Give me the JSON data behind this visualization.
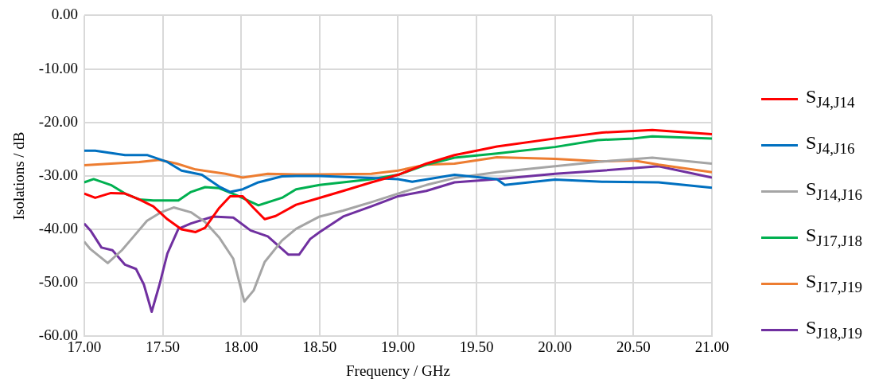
{
  "chart_data": {
    "type": "line",
    "xlabel": "Frequency / GHz",
    "ylabel": "Isolations / dB",
    "xlim": [
      17,
      21
    ],
    "ylim": [
      -60,
      0
    ],
    "xticks": [
      {
        "value": 17,
        "label": "17.00"
      },
      {
        "value": 17.5,
        "label": "17.50"
      },
      {
        "value": 18,
        "label": "18.00"
      },
      {
        "value": 18.5,
        "label": "18.50"
      },
      {
        "value": 19,
        "label": "19.00"
      },
      {
        "value": 19.5,
        "label": "19.50"
      },
      {
        "value": 20,
        "label": "20.00"
      },
      {
        "value": 20.5,
        "label": "20.50"
      },
      {
        "value": 21,
        "label": "21.00"
      }
    ],
    "yticks": [
      {
        "value": 0,
        "label": "0.00"
      },
      {
        "value": -10,
        "label": "-10.00"
      },
      {
        "value": -20,
        "label": "-20.00"
      },
      {
        "value": -30,
        "label": "-30.00"
      },
      {
        "value": -40,
        "label": "-40.00"
      },
      {
        "value": -50,
        "label": "-50.00"
      },
      {
        "value": -60,
        "label": "-60.00"
      }
    ],
    "grid": true,
    "legend": "right",
    "series": [
      {
        "name": "S$_{J4,J14}$",
        "color": "#ff0000",
        "x": [
          17.0,
          17.07,
          17.17,
          17.26,
          17.35,
          17.44,
          17.53,
          17.62,
          17.71,
          17.77,
          17.86,
          17.93,
          18.01,
          18.08,
          18.15,
          18.22,
          18.35,
          18.5,
          18.65,
          18.83,
          19.0,
          19.18,
          19.36,
          19.5,
          19.63,
          20.0,
          20.3,
          20.62,
          21.0
        ],
        "values": [
          -33.3,
          -34.1,
          -33.2,
          -33.3,
          -34.4,
          -35.7,
          -38.1,
          -40,
          -40.5,
          -39.7,
          -36,
          -33.8,
          -33.8,
          -36,
          -38.1,
          -37.5,
          -35.4,
          -34.1,
          -32.8,
          -31.2,
          -29.8,
          -27.7,
          -26.1,
          -25.3,
          -24.5,
          -23.0,
          -21.9,
          -21.4,
          -22.2
        ]
      },
      {
        "name": "S$_{J4,J16}$",
        "color": "#0070c0",
        "x": [
          17.0,
          17.07,
          17.26,
          17.4,
          17.53,
          17.62,
          17.75,
          17.86,
          17.93,
          18.01,
          18.11,
          18.26,
          18.35,
          18.5,
          18.83,
          19.0,
          19.09,
          19.36,
          19.63,
          19.68,
          20.0,
          20.3,
          20.66,
          21.0
        ],
        "values": [
          -25.3,
          -25.3,
          -26.1,
          -26.1,
          -27.4,
          -29.0,
          -29.8,
          -32.0,
          -33.0,
          -32.5,
          -31.2,
          -30.1,
          -30,
          -30,
          -30.4,
          -30.6,
          -31.1,
          -29.8,
          -30.6,
          -31.7,
          -30.7,
          -31.1,
          -31.2,
          -32.2
        ]
      },
      {
        "name": "S$_{J14,J16}$",
        "color": "#a5a5a5",
        "x": [
          17.0,
          17.04,
          17.15,
          17.24,
          17.31,
          17.4,
          17.49,
          17.57,
          17.68,
          17.77,
          17.86,
          17.95,
          18.02,
          18.08,
          18.15,
          18.26,
          18.35,
          18.5,
          18.65,
          18.83,
          19.0,
          19.18,
          19.36,
          19.63,
          20.0,
          20.3,
          20.62,
          21.0
        ],
        "values": [
          -42.3,
          -43.7,
          -46.3,
          -43.9,
          -41.5,
          -38.4,
          -36.8,
          -35.9,
          -36.8,
          -38.6,
          -41.5,
          -45.5,
          -53.5,
          -51.4,
          -46.1,
          -42.1,
          -39.9,
          -37.6,
          -36.5,
          -34.9,
          -33.3,
          -31.7,
          -30.4,
          -29.3,
          -28.2,
          -27.3,
          -26.6,
          -27.7
        ]
      },
      {
        "name": "S$_{J17,J18}$",
        "color": "#00b050",
        "x": [
          17.0,
          17.06,
          17.17,
          17.26,
          17.35,
          17.44,
          17.6,
          17.68,
          17.77,
          17.86,
          17.97,
          18.11,
          18.26,
          18.35,
          18.5,
          18.83,
          19.0,
          19.18,
          19.36,
          19.63,
          20.0,
          20.27,
          20.5,
          20.62,
          21.0
        ],
        "values": [
          -31.2,
          -30.6,
          -31.7,
          -33.3,
          -34.4,
          -34.6,
          -34.6,
          -33.0,
          -32.1,
          -32.3,
          -33.6,
          -35.5,
          -34.1,
          -32.5,
          -31.7,
          -30.6,
          -29.8,
          -27.9,
          -26.6,
          -25.8,
          -24.6,
          -23.3,
          -23.0,
          -22.6,
          -23.0
        ]
      },
      {
        "name": "S$_{J17,J19}$",
        "color": "#ed7d31",
        "x": [
          17.0,
          17.17,
          17.35,
          17.48,
          17.59,
          17.71,
          17.9,
          18.01,
          18.17,
          18.35,
          18.5,
          18.83,
          19.0,
          19.18,
          19.36,
          19.63,
          20.0,
          20.3,
          20.5,
          20.66,
          21.0
        ],
        "values": [
          -28.0,
          -27.7,
          -27.4,
          -27.0,
          -27.7,
          -28.8,
          -29.6,
          -30.3,
          -29.6,
          -29.7,
          -29.7,
          -29.6,
          -29.0,
          -27.9,
          -27.7,
          -26.5,
          -26.8,
          -27.3,
          -27.1,
          -27.9,
          -29.3
        ]
      },
      {
        "name": "S$_{J18,J19}$",
        "color": "#7030a0",
        "x": [
          17.0,
          17.04,
          17.11,
          17.18,
          17.26,
          17.33,
          17.38,
          17.43,
          17.48,
          17.53,
          17.6,
          17.68,
          17.82,
          17.95,
          18.06,
          18.17,
          18.3,
          18.37,
          18.44,
          18.5,
          18.65,
          18.83,
          19.0,
          19.18,
          19.36,
          19.63,
          20.0,
          20.3,
          20.66,
          21.0
        ],
        "values": [
          -38.9,
          -40.2,
          -43.4,
          -43.9,
          -46.6,
          -47.4,
          -50.3,
          -55.4,
          -50.3,
          -44.5,
          -39.9,
          -38.9,
          -37.6,
          -37.8,
          -40.2,
          -41.3,
          -44.7,
          -44.7,
          -41.8,
          -40.5,
          -37.6,
          -35.7,
          -33.8,
          -32.8,
          -31.2,
          -30.6,
          -29.6,
          -29.0,
          -28.2,
          -30.3
        ]
      }
    ]
  }
}
